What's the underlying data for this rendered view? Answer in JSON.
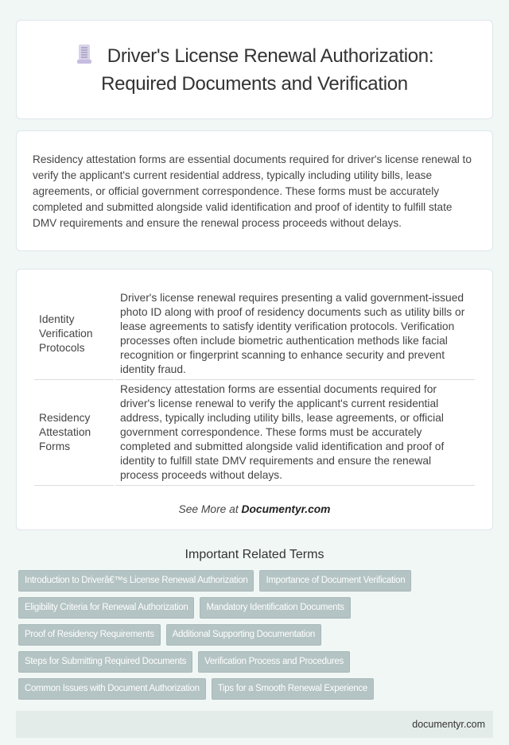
{
  "header": {
    "icon": "document-scroll-icon",
    "title": "Driver's License Renewal Authorization: Required Documents and Verification"
  },
  "intro": "Residency attestation forms are essential documents required for driver's license renewal to verify the applicant's current residential address, typically including utility bills, lease agreements, or official government correspondence. These forms must be accurately completed and submitted alongside valid identification and proof of identity to fulfill state DMV requirements and ensure the renewal process proceeds without delays.",
  "table": {
    "rows": [
      {
        "term": "Identity Verification Protocols",
        "description": "Driver's license renewal requires presenting a valid government-issued photo ID along with proof of residency documents such as utility bills or lease agreements to satisfy identity verification protocols. Verification processes often include biometric authentication methods like facial recognition or fingerprint scanning to enhance security and prevent identity fraud."
      },
      {
        "term": "Residency Attestation Forms",
        "description": "Residency attestation forms are essential documents required for driver's license renewal to verify the applicant's current residential address, typically including utility bills, lease agreements, or official government correspondence. These forms must be accurately completed and submitted alongside valid identification and proof of identity to fulfill state DMV requirements and ensure the renewal process proceeds without delays."
      }
    ]
  },
  "see_more": {
    "prefix": "See More at ",
    "link": "Documentyr.com"
  },
  "related": {
    "title": "Important Related Terms",
    "tags": [
      "Introduction to Driverâ€™s License Renewal Authorization",
      "Importance of Document Verification",
      "Eligibility Criteria for Renewal Authorization",
      "Mandatory Identification Documents",
      "Proof of Residency Requirements",
      "Additional Supporting Documentation",
      "Steps for Submitting Required Documents",
      "Verification Process and Procedures",
      "Common Issues with Document Authorization",
      "Tips for a Smooth Renewal Experience"
    ]
  },
  "footer": {
    "site": "documentyr.com"
  },
  "colors": {
    "background": "#f1f7f5",
    "tag": "#b4c3c3",
    "footer": "#e4ece9"
  }
}
